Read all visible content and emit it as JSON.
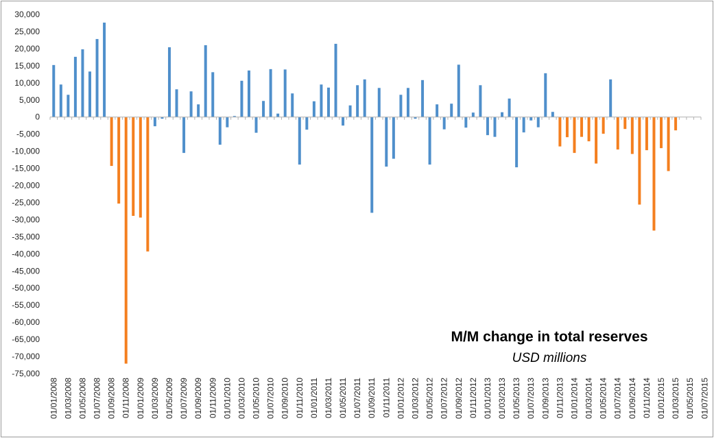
{
  "chart_data": {
    "type": "bar",
    "title": "M/M change in total reserves",
    "subtitle": "USD millions",
    "xlabel": "",
    "ylabel": "",
    "ylim": [
      -75000,
      30000
    ],
    "ytick_step": 5000,
    "grid": false,
    "legend": "none",
    "colors": {
      "positive": "#4f8fcb",
      "negative_highlight": "#f47f1f",
      "axis": "#b0b0b0"
    },
    "x_tick_labels": [
      "01/01/2008",
      "01/03/2008",
      "01/05/2008",
      "01/07/2008",
      "01/09/2008",
      "01/11/2008",
      "01/01/2009",
      "01/03/2009",
      "01/05/2009",
      "01/07/2009",
      "01/09/2009",
      "01/11/2009",
      "01/01/2010",
      "01/03/2010",
      "01/05/2010",
      "01/07/2010",
      "01/09/2010",
      "01/11/2010",
      "01/01/2011",
      "01/03/2011",
      "01/05/2011",
      "01/07/2011",
      "01/09/2011",
      "01/11/2011",
      "01/01/2012",
      "01/03/2012",
      "01/05/2012",
      "01/07/2012",
      "01/09/2012",
      "01/11/2012",
      "01/01/2013",
      "01/03/2013",
      "01/05/2013",
      "01/07/2013",
      "01/09/2013",
      "01/11/2013",
      "01/01/2014",
      "01/03/2014",
      "01/05/2014",
      "01/07/2014",
      "01/09/2014",
      "01/11/2014",
      "01/01/2015",
      "01/03/2015",
      "01/05/2015",
      "01/07/2015"
    ],
    "series": [
      {
        "values": [
          15200,
          9500,
          6500,
          17600,
          19800,
          13300,
          22800,
          27600,
          -14300,
          -25300,
          -72100,
          -28900,
          -29400,
          -39300,
          -2700,
          -500,
          20400,
          8100,
          -10500,
          7500,
          3700,
          21000,
          13100,
          -8100,
          -3000,
          300,
          10600,
          13600,
          -4600,
          4700,
          14000,
          1000,
          13900,
          6900,
          -13900,
          -3700,
          4600,
          9500,
          8600,
          21400,
          -2500,
          3400,
          9300,
          11000,
          -28000,
          8500,
          -14500,
          -12200,
          6500,
          8500,
          -500,
          10800,
          -13900,
          3700,
          -3600,
          3900,
          15300,
          -3100,
          1300,
          9300,
          -5300,
          -5800,
          1400,
          5400,
          -14700,
          -4500,
          -1000,
          -3000,
          12800,
          1500,
          -8600,
          -5900,
          -10500,
          -5800,
          -7100,
          -13600,
          -4900,
          11000,
          -9500,
          -3500,
          -10800,
          -25600,
          -9700,
          -33200,
          -9100,
          -15800,
          -3900,
          0,
          0,
          0
        ],
        "highlight": [
          false,
          false,
          false,
          false,
          false,
          false,
          false,
          false,
          true,
          true,
          true,
          true,
          true,
          true,
          false,
          false,
          false,
          false,
          false,
          false,
          false,
          false,
          false,
          false,
          false,
          false,
          false,
          false,
          false,
          false,
          false,
          false,
          false,
          false,
          false,
          false,
          false,
          false,
          false,
          false,
          false,
          false,
          false,
          false,
          false,
          false,
          false,
          false,
          false,
          false,
          false,
          false,
          false,
          false,
          false,
          false,
          false,
          false,
          false,
          false,
          false,
          false,
          false,
          false,
          false,
          false,
          false,
          false,
          false,
          false,
          true,
          true,
          true,
          true,
          true,
          true,
          true,
          false,
          true,
          true,
          true,
          true,
          true,
          true,
          true,
          true,
          true,
          false,
          false,
          false
        ]
      }
    ]
  }
}
